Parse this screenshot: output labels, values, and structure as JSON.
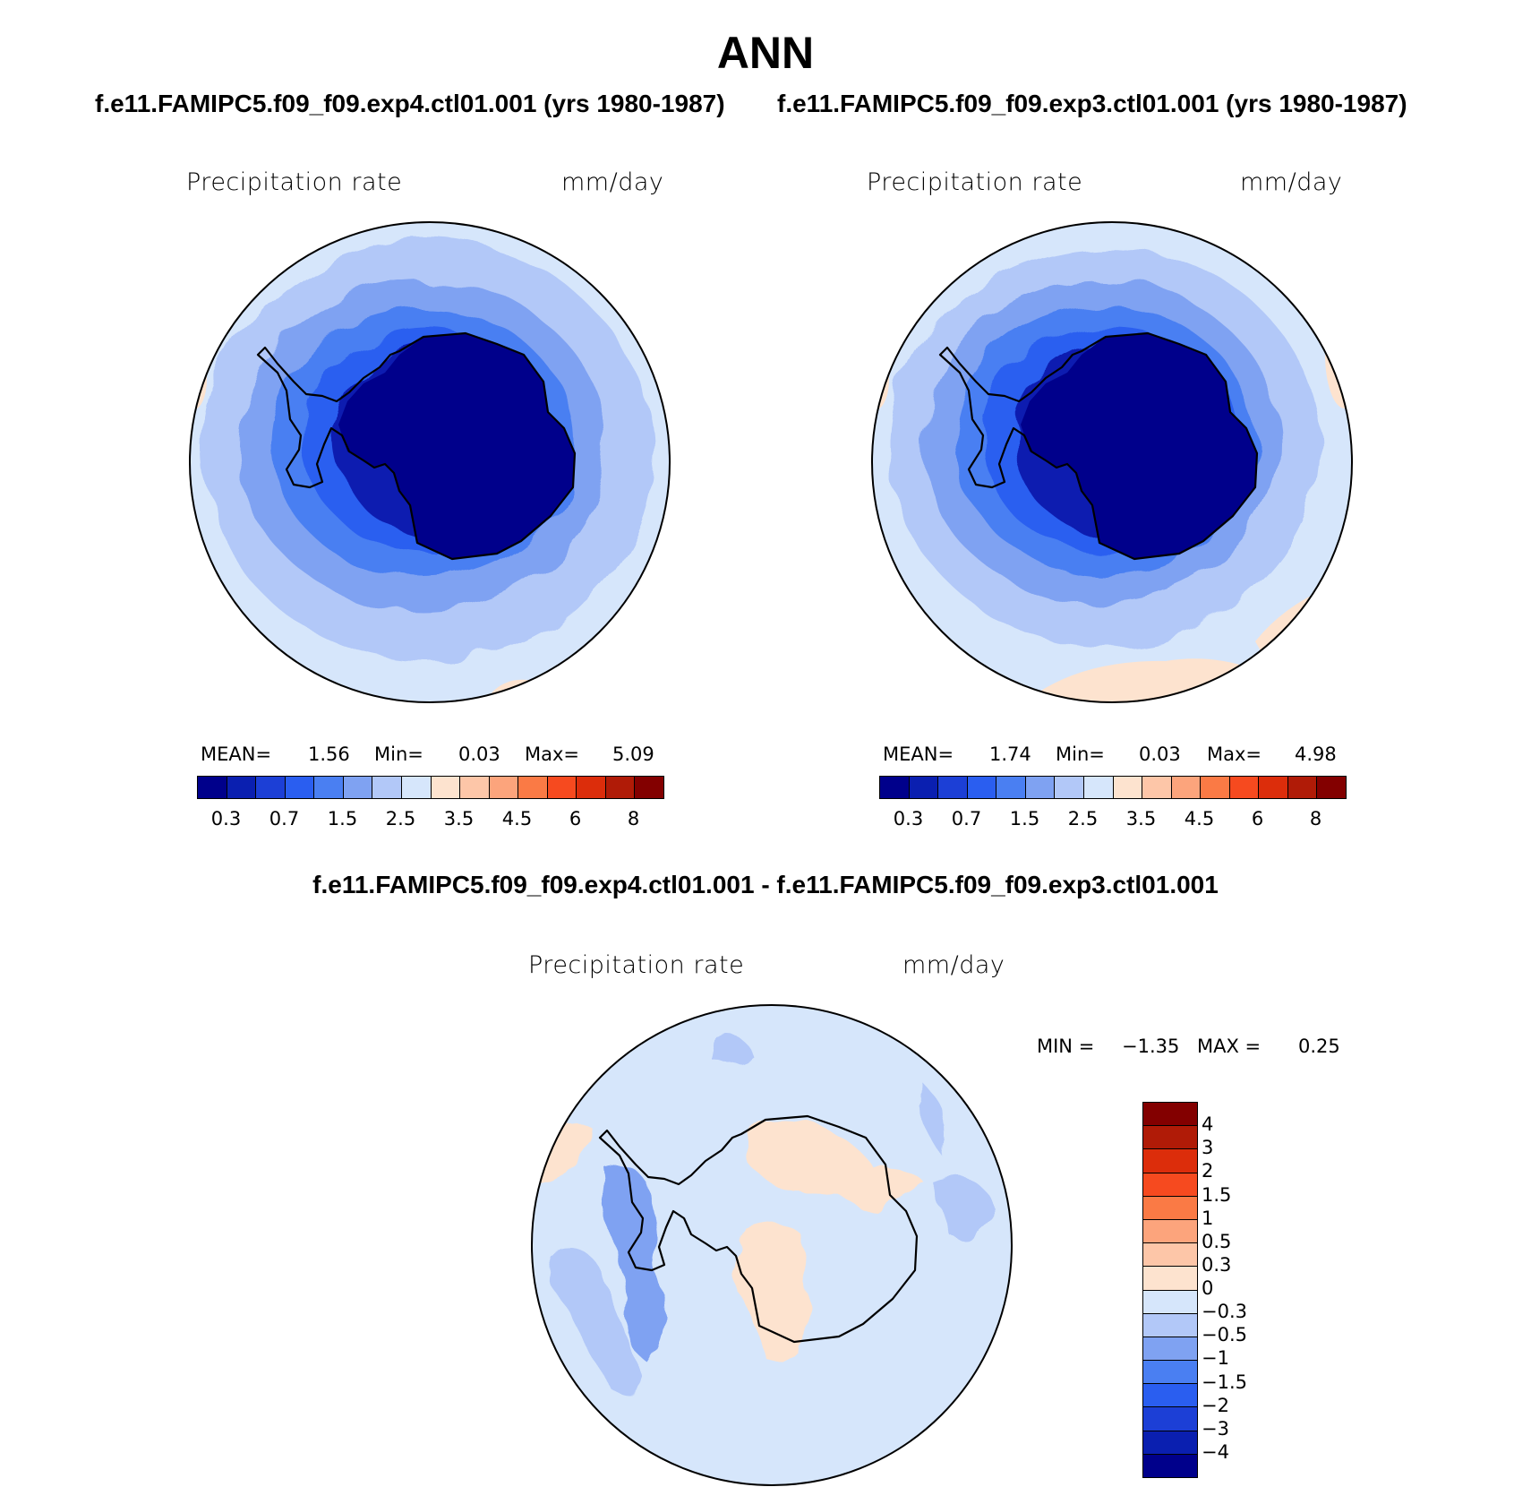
{
  "title": "ANN",
  "panels": [
    {
      "case": "f.e11.FAMIPC5.f09_f09.exp4.ctl01.001 (yrs 1980-1987)",
      "variable": "Precipitation rate",
      "units": "mm/day",
      "stats": {
        "mean_label": "MEAN=",
        "mean": "1.56",
        "min_label": "Min=",
        "min": "0.03",
        "max_label": "Max=",
        "max": "5.09"
      }
    },
    {
      "case": "f.e11.FAMIPC5.f09_f09.exp3.ctl01.001 (yrs 1980-1987)",
      "variable": "Precipitation rate",
      "units": "mm/day",
      "stats": {
        "mean_label": "MEAN=",
        "mean": "1.74",
        "min_label": "Min=",
        "min": "0.03",
        "max_label": "Max=",
        "max": "4.98"
      }
    }
  ],
  "colorbar": {
    "colors": [
      "#00008b",
      "#0a1fb0",
      "#1c3fd6",
      "#2a5ef0",
      "#4a7ff2",
      "#7fa2f2",
      "#b2c8f8",
      "#d6e6fb",
      "#fde3cf",
      "#fdc6a8",
      "#fca47c",
      "#fa7a45",
      "#f64a1f",
      "#dc2d0b",
      "#b01b07",
      "#830000"
    ],
    "labels": [
      "0.3",
      "0.7",
      "1.5",
      "2.5",
      "3.5",
      "4.5",
      "6",
      "8"
    ]
  },
  "difference": {
    "title": "f.e11.FAMIPC5.f09_f09.exp4.ctl01.001 - f.e11.FAMIPC5.f09_f09.exp3.ctl01.001",
    "variable": "Precipitation rate",
    "units": "mm/day",
    "min_label": "MIN =",
    "min": "−1.35",
    "max_label": "MAX =",
    "max": "0.25",
    "colorbar": {
      "colors_top_to_bottom": [
        "#830000",
        "#b01b07",
        "#dc2d0b",
        "#f64a1f",
        "#fa7a45",
        "#fca47c",
        "#fdc6a8",
        "#fde3cf",
        "#d6e6fb",
        "#b2c8f8",
        "#7fa2f2",
        "#4a7ff2",
        "#2a5ef0",
        "#1c3fd6",
        "#0a1fb0",
        "#00008b"
      ],
      "labels_top_to_bottom": [
        "4",
        "3",
        "2",
        "1.5",
        "1",
        "0.5",
        "0.3",
        "0",
        "−0.3",
        "−0.5",
        "−1",
        "−1.5",
        "−2",
        "−3",
        "−4"
      ]
    }
  }
}
